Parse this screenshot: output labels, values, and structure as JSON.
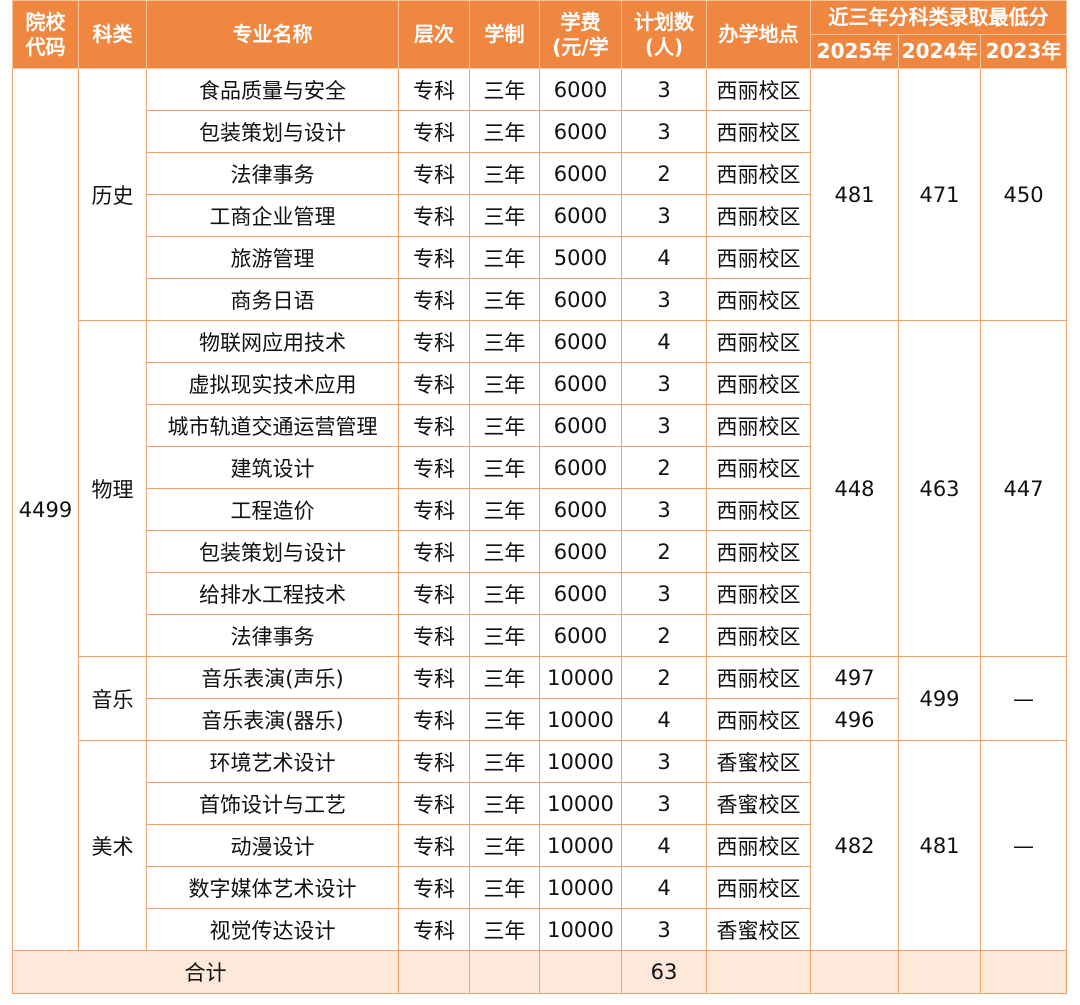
{
  "header": {
    "columns": [
      [
        "院校",
        "代码"
      ],
      [
        "科类"
      ],
      [
        "专业名称"
      ],
      [
        "层次"
      ],
      [
        "学制"
      ],
      [
        "学费",
        "(元/学"
      ],
      [
        "计划数",
        "(人)"
      ],
      [
        "办学地点"
      ]
    ],
    "score_title": "近三年分科类录取最低分",
    "years": [
      "2025年",
      "2024年",
      "2023年"
    ]
  },
  "table": {
    "code": "4499",
    "groups": [
      {
        "subject": "历史",
        "scores_2025": [
          481
        ],
        "score_2024": 471,
        "score_2023": 450,
        "majors": [
          [
            "食品质量与安全",
            "专科",
            "三年",
            6000,
            3,
            "西丽校区"
          ],
          [
            "包装策划与设计",
            "专科",
            "三年",
            6000,
            3,
            "西丽校区"
          ],
          [
            "法律事务",
            "专科",
            "三年",
            6000,
            2,
            "西丽校区"
          ],
          [
            "工商企业管理",
            "专科",
            "三年",
            6000,
            3,
            "西丽校区"
          ],
          [
            "旅游管理",
            "专科",
            "三年",
            5000,
            4,
            "西丽校区"
          ],
          [
            "商务日语",
            "专科",
            "三年",
            6000,
            3,
            "西丽校区"
          ]
        ]
      },
      {
        "subject": "物理",
        "scores_2025": [
          448
        ],
        "score_2024": 463,
        "score_2023": 447,
        "majors": [
          [
            "物联网应用技术",
            "专科",
            "三年",
            6000,
            4,
            "西丽校区"
          ],
          [
            "虚拟现实技术应用",
            "专科",
            "三年",
            6000,
            3,
            "西丽校区"
          ],
          [
            "城市轨道交通运营管理",
            "专科",
            "三年",
            6000,
            3,
            "西丽校区"
          ],
          [
            "建筑设计",
            "专科",
            "三年",
            6000,
            2,
            "西丽校区"
          ],
          [
            "工程造价",
            "专科",
            "三年",
            6000,
            3,
            "西丽校区"
          ],
          [
            "包装策划与设计",
            "专科",
            "三年",
            6000,
            2,
            "西丽校区"
          ],
          [
            "给排水工程技术",
            "专科",
            "三年",
            6000,
            3,
            "西丽校区"
          ],
          [
            "法律事务",
            "专科",
            "三年",
            6000,
            2,
            "西丽校区"
          ]
        ]
      },
      {
        "subject": "音乐",
        "scores_2025": [
          497,
          496
        ],
        "score_2024": 499,
        "score_2023": "—",
        "majors": [
          [
            "音乐表演(声乐)",
            "专科",
            "三年",
            10000,
            2,
            "西丽校区"
          ],
          [
            "音乐表演(器乐)",
            "专科",
            "三年",
            10000,
            4,
            "西丽校区"
          ]
        ]
      },
      {
        "subject": "美术",
        "scores_2025": [
          482
        ],
        "score_2024": 481,
        "score_2023": "—",
        "majors": [
          [
            "环境艺术设计",
            "专科",
            "三年",
            10000,
            3,
            "香蜜校区"
          ],
          [
            "首饰设计与工艺",
            "专科",
            "三年",
            10000,
            3,
            "香蜜校区"
          ],
          [
            "动漫设计",
            "专科",
            "三年",
            10000,
            4,
            "西丽校区"
          ],
          [
            "数字媒体艺术设计",
            "专科",
            "三年",
            10000,
            4,
            "西丽校区"
          ],
          [
            "视觉传达设计",
            "专科",
            "三年",
            10000,
            3,
            "香蜜校区"
          ]
        ]
      }
    ],
    "total": {
      "label": "合计",
      "plan": 63
    }
  }
}
